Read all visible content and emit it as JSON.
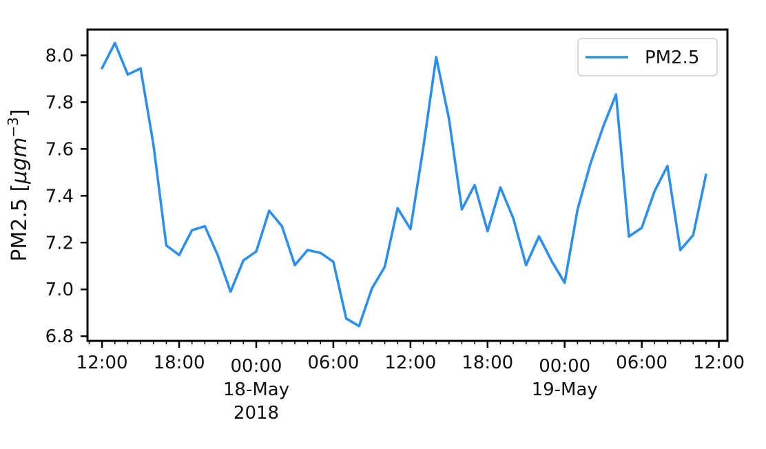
{
  "chart_data": {
    "type": "line",
    "x": [
      "2018-05-17 12:00",
      "2018-05-17 13:00",
      "2018-05-17 14:00",
      "2018-05-17 15:00",
      "2018-05-17 16:00",
      "2018-05-17 17:00",
      "2018-05-17 18:00",
      "2018-05-17 19:00",
      "2018-05-17 20:00",
      "2018-05-17 21:00",
      "2018-05-17 22:00",
      "2018-05-17 23:00",
      "2018-05-18 00:00",
      "2018-05-18 01:00",
      "2018-05-18 02:00",
      "2018-05-18 03:00",
      "2018-05-18 04:00",
      "2018-05-18 05:00",
      "2018-05-18 06:00",
      "2018-05-18 07:00",
      "2018-05-18 08:00",
      "2018-05-18 09:00",
      "2018-05-18 10:00",
      "2018-05-18 11:00",
      "2018-05-18 12:00",
      "2018-05-18 13:00",
      "2018-05-18 14:00",
      "2018-05-18 15:00",
      "2018-05-18 16:00",
      "2018-05-18 17:00",
      "2018-05-18 18:00",
      "2018-05-18 19:00",
      "2018-05-18 20:00",
      "2018-05-18 21:00",
      "2018-05-18 22:00",
      "2018-05-18 23:00",
      "2018-05-19 00:00",
      "2018-05-19 01:00",
      "2018-05-19 02:00",
      "2018-05-19 03:00",
      "2018-05-19 04:00",
      "2018-05-19 05:00",
      "2018-05-19 06:00",
      "2018-05-19 07:00",
      "2018-05-19 08:00",
      "2018-05-19 09:00",
      "2018-05-19 10:00",
      "2018-05-19 11:00"
    ],
    "series": [
      {
        "name": "PM2.5",
        "color": "#2b8fef",
        "values": [
          7.945,
          8.053,
          7.918,
          7.944,
          7.617,
          7.188,
          7.147,
          7.253,
          7.27,
          7.147,
          6.99,
          7.124,
          7.162,
          7.336,
          7.27,
          7.104,
          7.168,
          7.156,
          7.118,
          6.876,
          6.843,
          7.004,
          7.096,
          7.347,
          7.258,
          7.606,
          7.993,
          7.728,
          7.342,
          7.446,
          7.249,
          7.436,
          7.304,
          7.104,
          7.227,
          7.12,
          7.028,
          7.341,
          7.536,
          7.696,
          7.833,
          7.226,
          7.263,
          7.42,
          7.527,
          7.168,
          7.232,
          7.49
        ]
      }
    ],
    "ylabel": "PM2.5 [",
    "ylabel_math": "μgm",
    "ylabel_exp": "−3",
    "ylabel_close": "]",
    "ylim": [
      6.78,
      8.11
    ],
    "xlim": [
      "2018-05-17 10:52",
      "2018-05-19 12:40"
    ],
    "yticks": [
      "6.8",
      "7.0",
      "7.2",
      "7.4",
      "7.6",
      "7.8",
      "8.0"
    ],
    "xticks": [
      {
        "t": "2018-05-17 12:00",
        "label": "12:00",
        "sub": []
      },
      {
        "t": "2018-05-17 18:00",
        "label": "18:00",
        "sub": []
      },
      {
        "t": "2018-05-18 00:00",
        "label": "00:00",
        "sub": [
          "18-May",
          "2018"
        ]
      },
      {
        "t": "2018-05-18 06:00",
        "label": "06:00",
        "sub": []
      },
      {
        "t": "2018-05-18 12:00",
        "label": "12:00",
        "sub": []
      },
      {
        "t": "2018-05-18 18:00",
        "label": "18:00",
        "sub": []
      },
      {
        "t": "2018-05-19 00:00",
        "label": "00:00",
        "sub": [
          "19-May"
        ]
      },
      {
        "t": "2018-05-19 06:00",
        "label": "06:00",
        "sub": []
      },
      {
        "t": "2018-05-19 12:00",
        "label": "12:00",
        "sub": []
      }
    ],
    "legend": {
      "placement": "top-right",
      "entries": [
        "PM2.5"
      ]
    },
    "grid": false
  }
}
